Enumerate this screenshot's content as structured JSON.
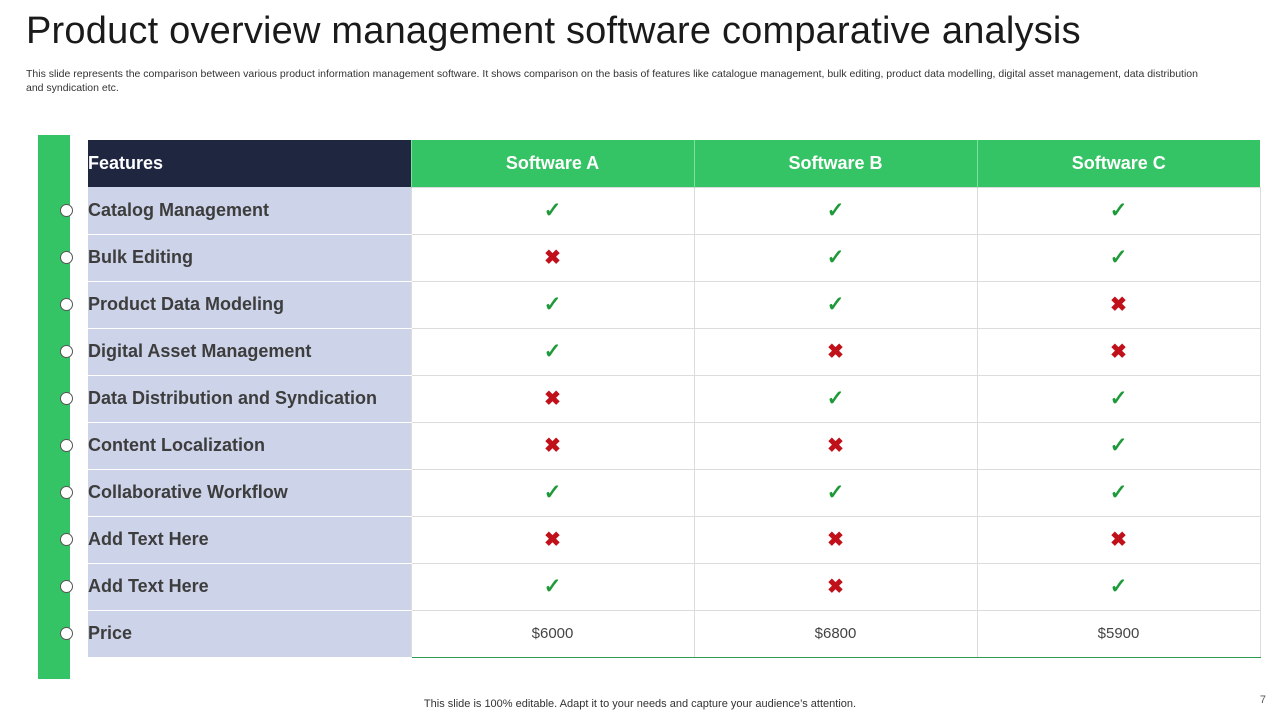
{
  "slide": {
    "title": "Product overview management software comparative analysis",
    "subtitle": "This slide represents the comparison between various product information management software. It shows comparison on the basis of features like catalogue management, bulk editing, product data modelling, digital asset management, data distribution and syndication etc.",
    "footer": "This slide is 100% editable. Adapt it to your needs and capture your audience’s attention.",
    "page_number": "7"
  },
  "colors": {
    "accent_green": "#35c465",
    "header_navy": "#1f2640",
    "feature_bg": "#cdd3e8",
    "check_green": "#1f9a3a",
    "cross_red": "#c0101a"
  },
  "table": {
    "headers": [
      "Features",
      "Software A",
      "Software B",
      "Software C"
    ],
    "rows": [
      {
        "feature": "Catalog Management",
        "values": [
          "check",
          "check",
          "check"
        ]
      },
      {
        "feature": "Bulk Editing",
        "values": [
          "cross",
          "check",
          "check"
        ]
      },
      {
        "feature": "Product Data Modeling",
        "values": [
          "check",
          "check",
          "cross"
        ]
      },
      {
        "feature": "Digital Asset Management",
        "values": [
          "check",
          "cross",
          "cross"
        ]
      },
      {
        "feature": "Data Distribution and Syndication",
        "values": [
          "cross",
          "check",
          "check"
        ]
      },
      {
        "feature": "Content Localization",
        "values": [
          "cross",
          "cross",
          "check"
        ]
      },
      {
        "feature": "Collaborative Workflow",
        "values": [
          "check",
          "check",
          "check"
        ]
      },
      {
        "feature": "Add Text Here",
        "values": [
          "cross",
          "cross",
          "cross"
        ]
      },
      {
        "feature": "Add Text Here",
        "values": [
          "check",
          "cross",
          "check"
        ]
      },
      {
        "feature": "Price",
        "values": [
          "$6000",
          "$6800",
          "$5900"
        ]
      }
    ]
  },
  "icons": {
    "check": "check-icon",
    "cross": "cross-icon"
  }
}
